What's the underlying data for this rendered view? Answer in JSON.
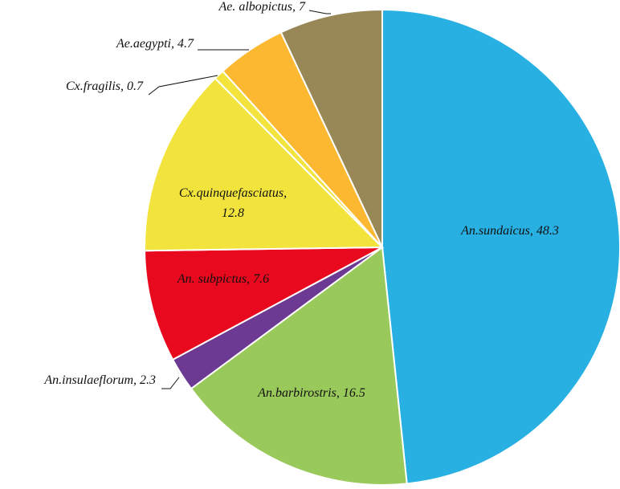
{
  "chart_data": {
    "type": "pie",
    "title": "",
    "start": "12 o'clock",
    "direction": "clockwise",
    "slices": [
      {
        "label": "An.sundaicus",
        "value": 48.3,
        "display": "An.sundaicus, 48.3",
        "color": "#29B0E3",
        "label_position": "inside"
      },
      {
        "label": "An.barbirostris",
        "value": 16.5,
        "display": "An.barbirostris, 16.5",
        "color": "#99C95A",
        "label_position": "inside"
      },
      {
        "label": "An.insulaeflorum",
        "value": 2.3,
        "display": "An.insulaeflorum, 2.3",
        "color": "#6C3A92",
        "label_position": "outside"
      },
      {
        "label": "An. subpictus",
        "value": 7.6,
        "display": "An. subpictus, 7.6",
        "color": "#E8091E",
        "label_position": "inside"
      },
      {
        "label": "Cx.quinquefasciatus",
        "value": 12.8,
        "display": [
          "Cx.quinquefasciatus,",
          "12.8"
        ],
        "color": "#F2E43D",
        "label_position": "inside"
      },
      {
        "label": "Cx.fragilis",
        "value": 0.7,
        "display": "Cx.fragilis, 0.7",
        "color": "#F2E43D",
        "label_position": "outside"
      },
      {
        "label": "Ae.aegypti",
        "value": 4.7,
        "display": "Ae.aegypti, 4.7",
        "color": "#FBB830",
        "label_position": "outside"
      },
      {
        "label": "Ae. albopictus",
        "value": 7,
        "display": "Ae. albopictus, 7",
        "color": "#998857",
        "label_position": "outside"
      }
    ]
  }
}
